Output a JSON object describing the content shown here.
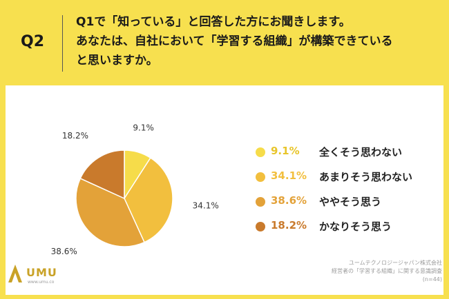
{
  "header": {
    "question_number": "Q2",
    "question_lines": [
      "Q1で「知っている」と回答した方にお聞きします。",
      "あなたは、自社において「学習する組織」が構築できている",
      "と思いますか。"
    ]
  },
  "colors": {
    "background": "#f7e04f",
    "slice_1": "#f6dc4a",
    "slice_2": "#f2bf3e",
    "slice_3": "#e3a239",
    "slice_4": "#c97a2c"
  },
  "chart_data": {
    "type": "pie",
    "start_angle_deg": 0,
    "direction": "clockwise",
    "slices": [
      {
        "label": "全くそう思わない",
        "value": 9.1,
        "value_label": "9.1%",
        "color": "#f6dc4a"
      },
      {
        "label": "あまりそう思わない",
        "value": 34.1,
        "value_label": "34.1%",
        "color": "#f2bf3e"
      },
      {
        "label": "ややそう思う",
        "value": 38.6,
        "value_label": "38.6%",
        "color": "#e3a239"
      },
      {
        "label": "かなりそう思う",
        "value": 18.2,
        "value_label": "18.2%",
        "color": "#c97a2c"
      }
    ],
    "legend_position": "right"
  },
  "logo": {
    "text": "UMU",
    "url": "www.umu.co"
  },
  "source": {
    "lines": [
      "ユームテクノロジージャパン株式会社",
      "経営者の「学習する組織」に関する意識調査",
      "(n=44)"
    ]
  }
}
